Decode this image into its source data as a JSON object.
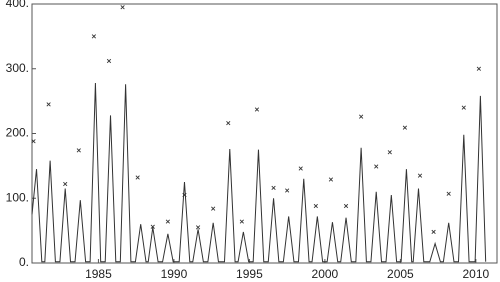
{
  "chart_data": {
    "type": "line",
    "xlim": [
      1980.6,
      2011.4
    ],
    "xticks": [
      1985,
      1990,
      1995,
      2000,
      2005,
      2010
    ],
    "ylim": [
      0,
      400
    ],
    "yticks": [
      {
        "value": 0,
        "label": "0."
      },
      {
        "value": 100,
        "label": "100."
      },
      {
        "value": 200,
        "label": "200."
      },
      {
        "value": 300,
        "label": "300."
      },
      {
        "value": 400,
        "label": "400."
      }
    ],
    "frame": true,
    "series": [
      {
        "style": "line",
        "color": "#333333",
        "x": [
          1980.6,
          1980.9,
          1981.25,
          1981.45,
          1981.8,
          1982.15,
          1982.45,
          1982.8,
          1983.15,
          1983.45,
          1983.8,
          1984.15,
          1984.45,
          1984.8,
          1985.15,
          1985.45,
          1985.8,
          1986.15,
          1986.45,
          1986.8,
          1987.15,
          1987.45,
          1987.8,
          1988.15,
          1988.3,
          1988.6,
          1988.95,
          1989.25,
          1989.6,
          1989.95,
          1990.35,
          1990.7,
          1991.05,
          1991.25,
          1991.6,
          1991.95,
          1992.25,
          1992.6,
          1992.95,
          1993.35,
          1993.7,
          1994.05,
          1994.25,
          1994.6,
          1994.95,
          1995.25,
          1995.6,
          1995.95,
          1996.25,
          1996.6,
          1996.95,
          1997.25,
          1997.6,
          1997.95,
          1998.25,
          1998.6,
          1998.95,
          1999.15,
          1999.5,
          1999.85,
          2000.15,
          2000.5,
          2000.85,
          2001.05,
          2001.4,
          2001.75,
          2002.05,
          2002.4,
          2002.75,
          2003.05,
          2003.4,
          2003.75,
          2004.05,
          2004.4,
          2004.75,
          2005.05,
          2005.4,
          2005.75,
          2005.85,
          2006.2,
          2006.55,
          2006.95,
          2007.3,
          2007.65,
          2007.85,
          2008.2,
          2008.55,
          2008.85,
          2009.2,
          2009.55,
          2009.95,
          2010.3,
          2010.65
        ],
        "values": [
          75,
          145,
          2,
          2,
          158,
          2,
          2,
          115,
          2,
          2,
          97,
          2,
          2,
          278,
          2,
          2,
          228,
          2,
          2,
          276,
          2,
          2,
          60,
          2,
          2,
          55,
          2,
          2,
          45,
          2,
          2,
          125,
          2,
          2,
          52,
          2,
          2,
          62,
          2,
          2,
          176,
          2,
          2,
          48,
          2,
          2,
          175,
          2,
          2,
          100,
          2,
          2,
          72,
          2,
          2,
          130,
          2,
          2,
          72,
          2,
          2,
          63,
          2,
          2,
          70,
          2,
          2,
          178,
          2,
          2,
          110,
          2,
          2,
          105,
          2,
          2,
          145,
          2,
          2,
          115,
          2,
          2,
          30,
          2,
          2,
          62,
          2,
          2,
          198,
          2,
          2,
          258,
          2
        ]
      },
      {
        "style": "markers",
        "color": "#333333",
        "x": [
          1980.7,
          1981.7,
          1982.8,
          1983.7,
          1984.7,
          1985.7,
          1986.6,
          1987.6,
          1988.6,
          1989.6,
          1990.7,
          1991.6,
          1992.6,
          1993.6,
          1994.5,
          1995.5,
          1996.6,
          1997.5,
          1998.4,
          1999.4,
          2000.4,
          2001.4,
          2002.4,
          2003.4,
          2004.3,
          2005.3,
          2006.3,
          2007.2,
          2008.2,
          2009.2,
          2010.2
        ],
        "values": [
          188,
          245,
          122,
          174,
          350,
          312,
          395,
          132,
          56,
          64,
          105,
          55,
          84,
          216,
          64,
          237,
          116,
          112,
          146,
          88,
          129,
          88,
          226,
          149,
          171,
          209,
          135,
          48,
          107,
          240,
          300
        ]
      }
    ]
  }
}
